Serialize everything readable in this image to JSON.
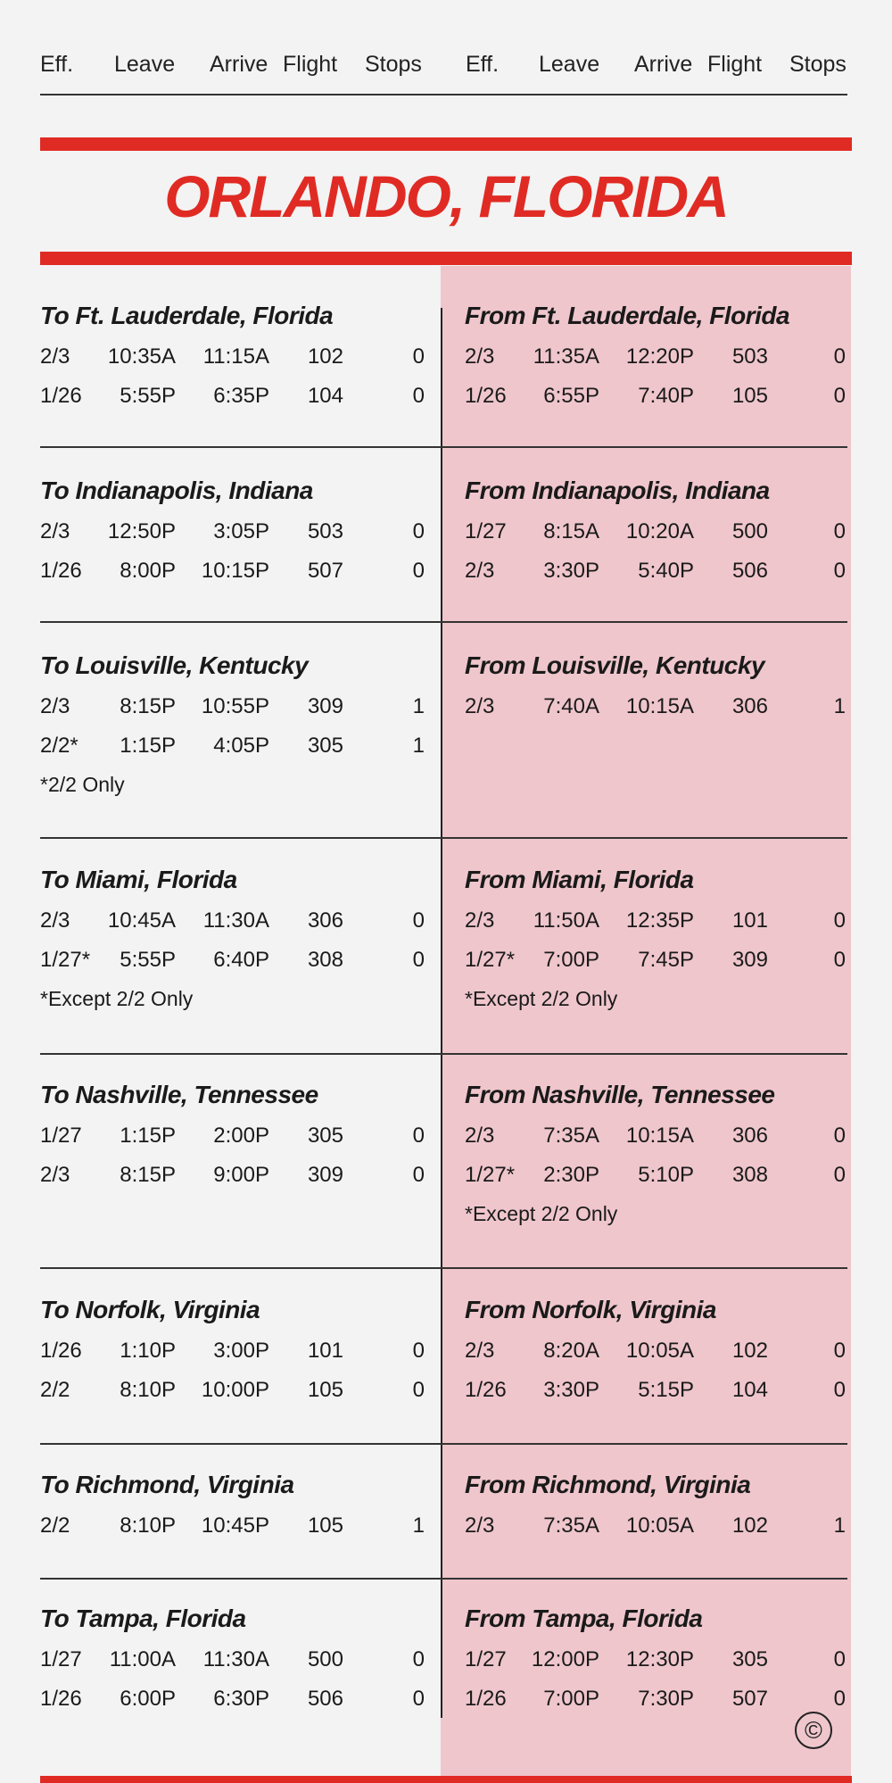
{
  "column_headers": {
    "left": [
      "Eff.",
      "Leave",
      "Arrive",
      "Flight",
      "Stops"
    ],
    "right": [
      "Eff.",
      "Leave",
      "Arrive",
      "Flight",
      "Stops"
    ]
  },
  "title": "ORLANDO, FLORIDA",
  "sections": [
    {
      "to": {
        "title": "To Ft. Lauderdale, Florida",
        "rows": [
          [
            "2/3",
            "10:35A",
            "11:15A",
            "102",
            "0"
          ],
          [
            "1/26",
            "5:55P",
            "6:35P",
            "104",
            "0"
          ]
        ],
        "note": ""
      },
      "from": {
        "title": "From Ft. Lauderdale, Florida",
        "rows": [
          [
            "2/3",
            "11:35A",
            "12:20P",
            "503",
            "0"
          ],
          [
            "1/26",
            "6:55P",
            "7:40P",
            "105",
            "0"
          ]
        ],
        "note": ""
      }
    },
    {
      "to": {
        "title": "To Indianapolis, Indiana",
        "rows": [
          [
            "2/3",
            "12:50P",
            "3:05P",
            "503",
            "0"
          ],
          [
            "1/26",
            "8:00P",
            "10:15P",
            "507",
            "0"
          ]
        ],
        "note": ""
      },
      "from": {
        "title": "From Indianapolis, Indiana",
        "rows": [
          [
            "1/27",
            "8:15A",
            "10:20A",
            "500",
            "0"
          ],
          [
            "2/3",
            "3:30P",
            "5:40P",
            "506",
            "0"
          ]
        ],
        "note": ""
      }
    },
    {
      "to": {
        "title": "To Louisville, Kentucky",
        "rows": [
          [
            "2/3",
            "8:15P",
            "10:55P",
            "309",
            "1"
          ],
          [
            "2/2*",
            "1:15P",
            "4:05P",
            "305",
            "1"
          ]
        ],
        "note": "*2/2 Only"
      },
      "from": {
        "title": "From Louisville, Kentucky",
        "rows": [
          [
            "2/3",
            "7:40A",
            "10:15A",
            "306",
            "1"
          ]
        ],
        "note": ""
      }
    },
    {
      "to": {
        "title": "To Miami, Florida",
        "rows": [
          [
            "2/3",
            "10:45A",
            "11:30A",
            "306",
            "0"
          ],
          [
            "1/27*",
            "5:55P",
            "6:40P",
            "308",
            "0"
          ]
        ],
        "note": "*Except 2/2 Only"
      },
      "from": {
        "title": "From Miami, Florida",
        "rows": [
          [
            "2/3",
            "11:50A",
            "12:35P",
            "101",
            "0"
          ],
          [
            "1/27*",
            "7:00P",
            "7:45P",
            "309",
            "0"
          ]
        ],
        "note": "*Except 2/2 Only"
      }
    },
    {
      "to": {
        "title": "To Nashville, Tennessee",
        "rows": [
          [
            "1/27",
            "1:15P",
            "2:00P",
            "305",
            "0"
          ],
          [
            "2/3",
            "8:15P",
            "9:00P",
            "309",
            "0"
          ]
        ],
        "note": ""
      },
      "from": {
        "title": "From Nashville, Tennessee",
        "rows": [
          [
            "2/3",
            "7:35A",
            "10:15A",
            "306",
            "0"
          ],
          [
            "1/27*",
            "2:30P",
            "5:10P",
            "308",
            "0"
          ]
        ],
        "note": "*Except 2/2 Only"
      }
    },
    {
      "to": {
        "title": "To Norfolk, Virginia",
        "rows": [
          [
            "1/26",
            "1:10P",
            "3:00P",
            "101",
            "0"
          ],
          [
            "2/2",
            "8:10P",
            "10:00P",
            "105",
            "0"
          ]
        ],
        "note": ""
      },
      "from": {
        "title": "From Norfolk, Virginia",
        "rows": [
          [
            "2/3",
            "8:20A",
            "10:05A",
            "102",
            "0"
          ],
          [
            "1/26",
            "3:30P",
            "5:15P",
            "104",
            "0"
          ]
        ],
        "note": ""
      }
    },
    {
      "to": {
        "title": "To Richmond, Virginia",
        "rows": [
          [
            "2/2",
            "8:10P",
            "10:45P",
            "105",
            "1"
          ]
        ],
        "note": ""
      },
      "from": {
        "title": "From Richmond, Virginia",
        "rows": [
          [
            "2/3",
            "7:35A",
            "10:05A",
            "102",
            "1"
          ]
        ],
        "note": ""
      }
    },
    {
      "to": {
        "title": "To Tampa, Florida",
        "rows": [
          [
            "1/27",
            "11:00A",
            "11:30A",
            "500",
            "0"
          ],
          [
            "1/26",
            "6:00P",
            "6:30P",
            "506",
            "0"
          ]
        ],
        "note": ""
      },
      "from": {
        "title": "From Tampa, Florida",
        "rows": [
          [
            "1/27",
            "12:00P",
            "12:30P",
            "305",
            "0"
          ],
          [
            "1/26",
            "7:00P",
            "7:30P",
            "507",
            "0"
          ]
        ],
        "note": ""
      }
    }
  ],
  "copyright_symbol": "©",
  "colors": {
    "accent": "#e02b24",
    "panel": "#efc6cc",
    "background": "#f3f3f3"
  }
}
